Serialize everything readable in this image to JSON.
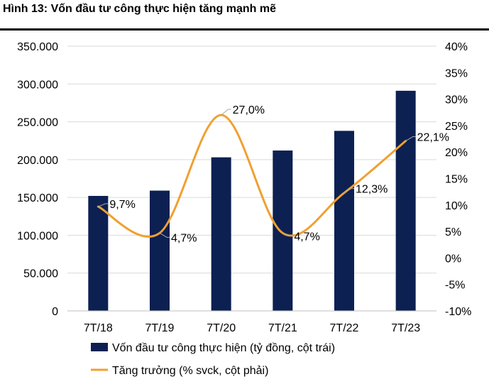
{
  "chart_data": {
    "type": "bar+line",
    "title": "Hình 13: Vốn đầu tư công thực hiện tăng mạnh mẽ",
    "categories": [
      "7T/18",
      "7T/19",
      "7T/20",
      "7T/21",
      "7T/22",
      "7T/23"
    ],
    "series": [
      {
        "name": "Vốn đầu tư công thực hiện (tỷ đồng, cột trái)",
        "type": "bar",
        "axis": "left",
        "color": "#0c2052",
        "values": [
          152000,
          159000,
          203000,
          212000,
          238000,
          291000
        ]
      },
      {
        "name": "Tăng trưởng (% svck, cột phải)",
        "type": "line",
        "axis": "right",
        "color": "#f0a030",
        "values": [
          9.7,
          4.7,
          27.0,
          4.7,
          12.3,
          22.1
        ],
        "labels": [
          "9,7%",
          "4,7%",
          "27,0%",
          "4,7%",
          "12,3%",
          "22,1%"
        ]
      }
    ],
    "left_axis": {
      "min": 0,
      "max": 350000,
      "ticks": [
        "0",
        "50.000",
        "100.000",
        "150.000",
        "200.000",
        "250.000",
        "300.000",
        "350.000"
      ]
    },
    "right_axis": {
      "min": -10,
      "max": 40,
      "ticks": [
        "-10%",
        "-5%",
        "0%",
        "5%",
        "10%",
        "15%",
        "20%",
        "25%",
        "30%",
        "35%",
        "40%"
      ]
    },
    "grid": true,
    "legend": "bottom"
  }
}
